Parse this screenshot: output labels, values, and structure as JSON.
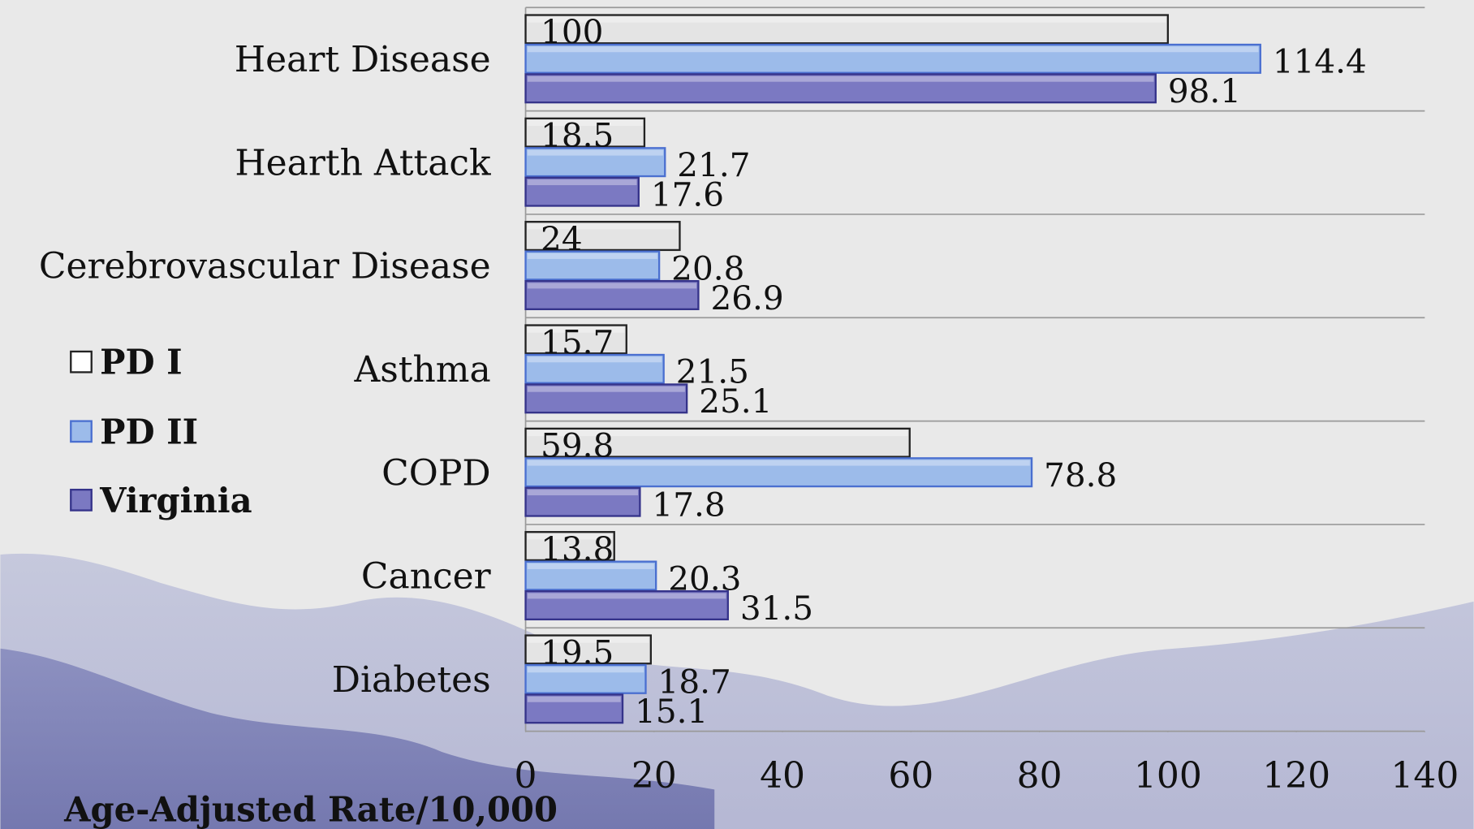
{
  "chart_data": {
    "type": "hbar",
    "categories": [
      "Heart Disease",
      "Hearth Attack",
      "Cerebrovascular Disease",
      "Asthma",
      "COPD",
      "Cancer",
      "Diabetes"
    ],
    "series": [
      {
        "name": "PD I",
        "color": "#e4e4e4",
        "values": [
          100,
          18.5,
          24,
          15.7,
          59.8,
          13.8,
          19.5
        ]
      },
      {
        "name": "PD II",
        "color": "#9cbbea",
        "values": [
          114.4,
          21.7,
          20.8,
          21.5,
          78.8,
          20.3,
          18.7
        ]
      },
      {
        "name": "Virginia",
        "color": "#7b79c2",
        "values": [
          98.1,
          17.6,
          26.9,
          25.1,
          17.8,
          31.5,
          15.1
        ]
      }
    ],
    "xlim": [
      0,
      140
    ],
    "xticks": [
      0,
      20,
      40,
      60,
      80,
      100,
      120,
      140
    ],
    "x_label": "Age-Adjusted Rate/10,000"
  }
}
